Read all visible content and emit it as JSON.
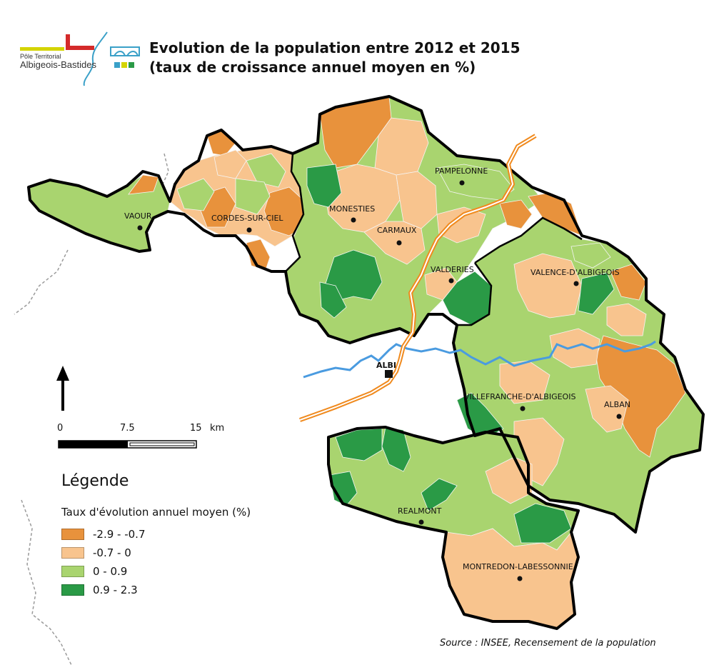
{
  "title": {
    "line1": "Evolution de la population entre 2012 et 2015",
    "line2": "(taux de croissance annuel moyen en %)"
  },
  "logo": {
    "small": "Pôle Territorial",
    "big": "Albigeois-Bastides"
  },
  "colors": {
    "dark_orange": "#E8923C",
    "light_orange": "#F8C48E",
    "light_green": "#A9D46F",
    "dark_green": "#2A9A46",
    "river": "#4A9BE0",
    "road": "#F08A1E",
    "boundary": "#000000"
  },
  "cities": [
    {
      "name": "PAMPELONNE"
    },
    {
      "name": "VAOUR"
    },
    {
      "name": "CORDES-SUR-CIEL"
    },
    {
      "name": "MONESTIES"
    },
    {
      "name": "CARMAUX"
    },
    {
      "name": "VALDERIES"
    },
    {
      "name": "VALENCE-D'ALBIGEOIS"
    },
    {
      "name": "ALBI"
    },
    {
      "name": "VILLEFRANCHE-D'ALBIGEOIS"
    },
    {
      "name": "ALBAN"
    },
    {
      "name": "REALMONT"
    },
    {
      "name": "MONTREDON-LABESSONNIE"
    }
  ],
  "scale": {
    "ticks": [
      "0",
      "7.5",
      "15"
    ],
    "unit": "km"
  },
  "legend": {
    "title": "Légende",
    "subtitle": "Taux d'évolution annuel moyen (%)",
    "items": [
      {
        "label": "-2.9 - -0.7",
        "color": "#E8923C"
      },
      {
        "label": "-0.7 - 0",
        "color": "#F8C48E"
      },
      {
        "label": "0 - 0.9",
        "color": "#A9D46F"
      },
      {
        "label": "0.9 - 2.3",
        "color": "#2A9A46"
      }
    ]
  },
  "source": "Source : INSEE, Recensement de la population",
  "icons": [
    "north-arrow-icon",
    "city-point-icon",
    "prefecture-square-icon"
  ]
}
